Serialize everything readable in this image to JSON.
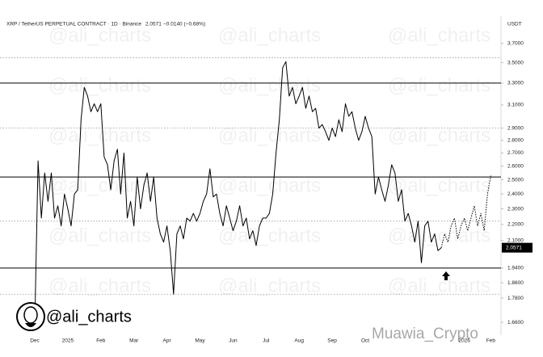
{
  "chart_data": {
    "type": "line",
    "title": "XRP / TetherUS PERPETUAL CONTRACT · 1D · Binance",
    "last_price": 2.0571,
    "change": "−0.0140 (−0.68%)",
    "currency": "USDT",
    "watermark": "@ali_charts",
    "logo_text": "@ali_charts",
    "credit": "Muawia_Crypto",
    "log_scale": true,
    "ylim": [
      1.6,
      4.0
    ],
    "yticks": [
      {
        "value": 3.7,
        "label": "3.7000"
      },
      {
        "value": 3.5,
        "label": "3.5000"
      },
      {
        "value": 3.3,
        "label": "3.3000"
      },
      {
        "value": 3.1,
        "label": "3.1000"
      },
      {
        "value": 2.9,
        "label": "2.9000"
      },
      {
        "value": 2.8,
        "label": "2.8000"
      },
      {
        "value": 2.7,
        "label": "2.7000"
      },
      {
        "value": 2.6,
        "label": "2.6000"
      },
      {
        "value": 2.5,
        "label": "2.5000"
      },
      {
        "value": 2.4,
        "label": "2.4000"
      },
      {
        "value": 2.3,
        "label": "2.3000"
      },
      {
        "value": 2.2,
        "label": "2.2000"
      },
      {
        "value": 2.1,
        "label": "2.1000"
      },
      {
        "value": 1.94,
        "label": "1.9400"
      },
      {
        "value": 1.86,
        "label": "1.8600"
      },
      {
        "value": 1.78,
        "label": "1.7800"
      },
      {
        "value": 1.66,
        "label": "1.6600"
      }
    ],
    "levels": [
      {
        "value": 3.55,
        "style": "dotted"
      },
      {
        "value": 3.3,
        "style": "solid"
      },
      {
        "value": 2.9,
        "style": "dotted"
      },
      {
        "value": 2.52,
        "style": "solid"
      },
      {
        "value": 2.22,
        "style": "dotted"
      },
      {
        "value": 1.94,
        "style": "solid"
      },
      {
        "value": 1.8,
        "style": "dotted"
      }
    ],
    "categories": [
      "Dec",
      null,
      null,
      null,
      null,
      null,
      null,
      null,
      null,
      null,
      "2025",
      null,
      null,
      null,
      null,
      null,
      null,
      null,
      null,
      null,
      "Feb",
      null,
      null,
      null,
      null,
      null,
      null,
      null,
      null,
      null,
      "Mar",
      null,
      null,
      null,
      null,
      null,
      null,
      null,
      null,
      null,
      "Apr",
      null,
      null,
      null,
      null,
      null,
      null,
      null,
      null,
      null,
      "May",
      null,
      null,
      null,
      null,
      null,
      null,
      null,
      null,
      null,
      "Jun",
      null,
      null,
      null,
      null,
      null,
      null,
      null,
      null,
      null,
      "Jul",
      null,
      null,
      null,
      null,
      null,
      null,
      null,
      null,
      null,
      "Aug",
      null,
      null,
      null,
      null,
      null,
      null,
      null,
      null,
      null,
      "Sep",
      null,
      null,
      null,
      null,
      null,
      null,
      null,
      null,
      null,
      "Oct",
      null,
      null,
      null,
      null,
      null,
      null,
      null,
      null,
      null,
      null,
      null,
      null,
      null,
      null,
      null,
      null,
      null,
      null,
      null,
      null,
      null,
      null,
      null,
      null,
      null,
      null,
      null,
      null,
      null,
      "2026",
      null,
      null,
      null,
      null,
      null,
      null,
      null,
      "Feb"
    ],
    "series": [
      {
        "color": "#000000",
        "dash": "solid",
        "values": [
          1.635,
          2.64,
          2.24,
          2.55,
          2.35,
          2.55,
          2.24,
          2.32,
          2.19,
          2.4,
          2.3,
          2.19,
          2.4,
          2.43,
          2.97,
          3.26,
          3.18,
          3.04,
          3.11,
          3.04,
          3.11,
          2.67,
          2.61,
          2.43,
          2.64,
          2.73,
          2.4,
          2.7,
          2.24,
          2.35,
          2.19,
          2.52,
          2.3,
          2.46,
          2.55,
          2.35,
          2.52,
          2.24,
          2.14,
          2.09,
          2.19,
          2.04,
          1.8,
          2.14,
          2.19,
          2.11,
          2.24,
          2.22,
          2.27,
          2.22,
          2.27,
          2.35,
          2.4,
          2.58,
          2.38,
          2.4,
          2.27,
          2.19,
          2.32,
          2.24,
          2.16,
          2.22,
          2.32,
          2.19,
          2.24,
          2.11,
          2.16,
          2.07,
          2.19,
          2.24,
          2.24,
          2.27,
          2.4,
          2.7,
          2.97,
          3.45,
          3.51,
          3.18,
          3.26,
          3.11,
          3.18,
          3.26,
          3.07,
          3.18,
          3.04,
          3.07,
          2.9,
          2.93,
          2.87,
          2.8,
          2.9,
          2.83,
          2.97,
          2.87,
          3.11,
          3.0,
          3.04,
          2.9,
          2.8,
          2.87,
          3.0,
          2.9,
          2.83,
          2.4,
          2.52,
          2.43,
          2.35,
          2.46,
          2.61,
          2.55,
          2.35,
          2.43,
          2.22,
          2.27,
          2.19,
          2.09,
          2.22,
          1.97,
          2.19,
          2.22,
          2.09,
          2.14,
          2.04,
          2.0571,
          null,
          null,
          null,
          null,
          null,
          null,
          null,
          null,
          null,
          null,
          null,
          null,
          null,
          null,
          null
        ]
      },
      {
        "color": "#000000",
        "dash": "dotted",
        "values": [
          null,
          null,
          null,
          null,
          null,
          null,
          null,
          null,
          null,
          null,
          null,
          null,
          null,
          null,
          null,
          null,
          null,
          null,
          null,
          null,
          null,
          null,
          null,
          null,
          null,
          null,
          null,
          null,
          null,
          null,
          null,
          null,
          null,
          null,
          null,
          null,
          null,
          null,
          null,
          null,
          null,
          null,
          null,
          null,
          null,
          null,
          null,
          null,
          null,
          null,
          null,
          null,
          null,
          null,
          null,
          null,
          null,
          null,
          null,
          null,
          null,
          null,
          null,
          null,
          null,
          null,
          null,
          null,
          null,
          null,
          null,
          null,
          null,
          null,
          null,
          null,
          null,
          null,
          null,
          null,
          null,
          null,
          null,
          null,
          null,
          null,
          null,
          null,
          null,
          null,
          null,
          null,
          null,
          null,
          null,
          null,
          null,
          null,
          null,
          null,
          null,
          null,
          null,
          null,
          null,
          null,
          null,
          null,
          null,
          null,
          null,
          null,
          null,
          null,
          null,
          null,
          null,
          null,
          null,
          null,
          null,
          null,
          null,
          2.0571,
          2.14,
          2.09,
          2.19,
          2.24,
          2.11,
          2.19,
          2.24,
          2.16,
          2.24,
          2.32,
          2.19,
          2.27,
          2.16,
          2.4,
          2.53
        ]
      }
    ]
  }
}
